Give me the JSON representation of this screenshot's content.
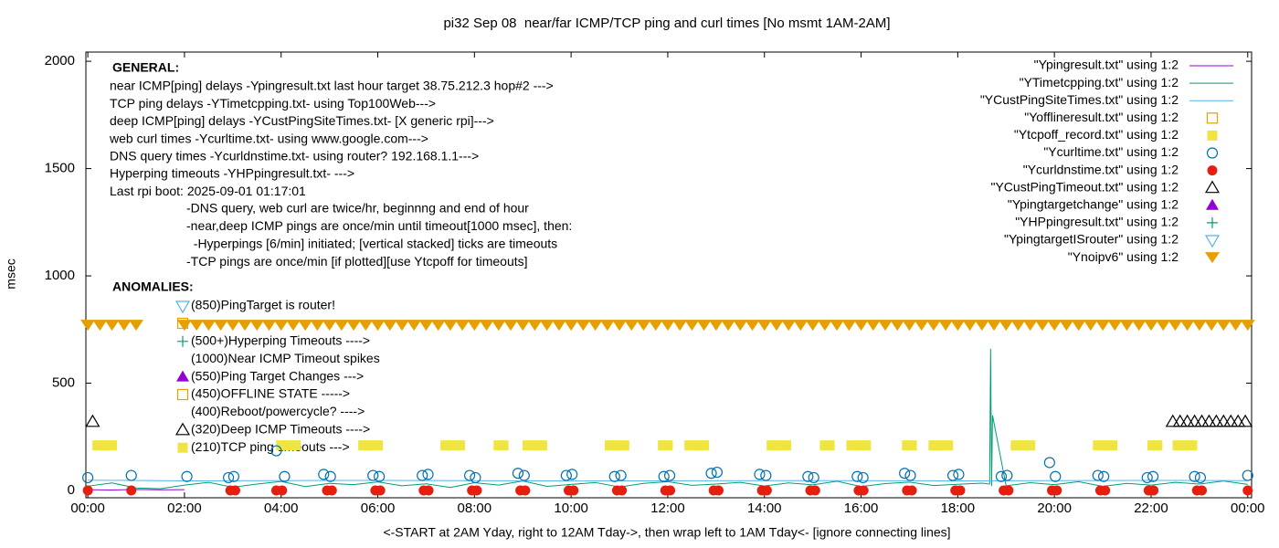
{
  "chart_data": {
    "type": "scatter",
    "title": "pi32 Sep 08  near/far ICMP/TCP ping and curl times [No msmt 1AM-2AM]",
    "x_label": "<-START at 2AM Yday, right to 12AM Tday->, then wrap left to 1AM Tday<- [ignore connecting lines]",
    "y_label": "msec",
    "xlim": [
      -0.04,
      24.08
    ],
    "ylim": [
      -34,
      2043
    ],
    "xticks": [
      {
        "value": 0,
        "label": "00:00"
      },
      {
        "value": 2,
        "label": "02:00"
      },
      {
        "value": 4,
        "label": "04:00"
      },
      {
        "value": 6,
        "label": "06:00"
      },
      {
        "value": 8,
        "label": "08:00"
      },
      {
        "value": 10,
        "label": "10:00"
      },
      {
        "value": 12,
        "label": "12:00"
      },
      {
        "value": 14,
        "label": "14:00"
      },
      {
        "value": 16,
        "label": "16:00"
      },
      {
        "value": 18,
        "label": "18:00"
      },
      {
        "value": 20,
        "label": "20:00"
      },
      {
        "value": 22,
        "label": "22:00"
      },
      {
        "value": 24,
        "label": "00:00"
      }
    ],
    "yticks": [
      0,
      500,
      1000,
      1500,
      2000
    ],
    "legend": "top-right",
    "annotations": {
      "general_title": "GENERAL:",
      "general": [
        "near ICMP[ping] delays -Ypingresult.txt last hour target 38.75.212.3 hop#2 --->",
        "TCP ping delays -YTimetcpping.txt- using Top100Web--->",
        "deep ICMP[ping] delays -YCustPingSiteTimes.txt- [X generic rpi]--->",
        "web curl times -Ycurltime.txt- using www.google.com--->",
        "DNS query times -Ycurldnstime.txt- using router? 192.168.1.1--->",
        "Hyperping timeouts -YHPpingresult.txt- --->",
        "Last rpi boot: 2025-09-01 01:17:01"
      ],
      "notes": [
        "-DNS query, web curl are twice/hr, beginnng and end of hour",
        "-near,deep ICMP pings are once/min until timeout[1000 msec], then:",
        "  -Hyperpings [6/min] initiated; [vertical stacked] ticks are timeouts",
        "-TCP pings are once/min [if plotted][use Ytcpoff for timeouts]"
      ],
      "anomalies_title": "ANOMALIES:",
      "anomalies": [
        "(850)PingTarget is router!",
        "(500+)Hyperping Timeouts ---->",
        "(1000)Near ICMP Timeout spikes",
        "(550)Ping Target Changes --->",
        "(450)OFFLINE STATE ----->",
        "(400)Reboot/powercycle? ---->",
        "(320)Deep ICMP Timeouts ---->",
        "(210)TCP ping timeouts --->"
      ]
    },
    "series": [
      {
        "name": "\"Ypingresult.txt\" using 1:2",
        "color": "#9400d3",
        "style": "line",
        "x": [
          0,
          0.5,
          1,
          1.5,
          2
        ],
        "values": [
          4,
          2,
          5,
          3,
          4
        ]
      },
      {
        "name": "\"YTimetcpping.txt\" using 1:2",
        "color": "#009e73",
        "style": "line",
        "x": [
          0,
          0.5,
          1,
          1.5,
          2,
          2.5,
          3,
          3.5,
          4,
          4.5,
          5,
          5.5,
          6,
          6.5,
          7,
          7.5,
          8,
          8.5,
          9,
          9.5,
          10,
          10.5,
          11,
          11.5,
          12,
          12.5,
          13,
          13.5,
          14,
          14.5,
          15,
          15.5,
          16,
          16.5,
          17,
          17.5,
          18,
          18.5,
          18.66,
          18.68,
          18.7,
          18.72,
          19,
          19.5,
          20,
          20.5,
          21,
          21.5,
          22,
          22.5,
          23,
          23.5,
          24
        ],
        "values": [
          20,
          35,
          12,
          8,
          25,
          38,
          15,
          30,
          42,
          18,
          33,
          27,
          40,
          22,
          31,
          14,
          36,
          25,
          44,
          19,
          28,
          37,
          16,
          33,
          41,
          24,
          30,
          38,
          21,
          35,
          26,
          43,
          18,
          32,
          39,
          23,
          29,
          34,
          30,
          660,
          20,
          350,
          22,
          36,
          27,
          41,
          19,
          33,
          25,
          38,
          30,
          44,
          28
        ]
      },
      {
        "name": "\"YCustPingSiteTimes.txt\" using 1:2",
        "color": "#56b4e9",
        "style": "line",
        "x": [
          0,
          2,
          6,
          10,
          14,
          18,
          22,
          24
        ],
        "values": [
          48,
          45,
          47,
          44,
          46,
          45,
          47,
          46
        ]
      },
      {
        "name": "\"Yofflineresult.txt\" using 1:2",
        "color": "#e69f00",
        "style": "points",
        "marker": "open-square",
        "x": [],
        "values": []
      },
      {
        "name": "\"Ytcpoff_record.txt\" using 1:2",
        "color": "#f0e442",
        "style": "points",
        "marker": "filled-square",
        "x": [
          0.2,
          0.3,
          0.4,
          0.5,
          4.0,
          4.1,
          4.2,
          4.3,
          5.7,
          5.8,
          5.9,
          6.0,
          7.4,
          7.5,
          7.6,
          7.7,
          8.5,
          8.6,
          9.1,
          9.2,
          9.3,
          9.4,
          10.8,
          10.9,
          11.0,
          11.1,
          11.9,
          12.0,
          12.45,
          12.55,
          12.65,
          12.75,
          14.15,
          14.25,
          14.35,
          14.45,
          15.25,
          15.35,
          15.8,
          15.9,
          16.0,
          16.1,
          16.95,
          17.05,
          17.5,
          17.6,
          17.7,
          17.8,
          19.2,
          19.3,
          19.4,
          19.5,
          20.9,
          21.0,
          21.1,
          21.2,
          22.03,
          22.13,
          22.55,
          22.65,
          22.75,
          22.85
        ],
        "values": [
          210,
          210,
          210,
          210,
          210,
          210,
          210,
          210,
          210,
          210,
          210,
          210,
          210,
          210,
          210,
          210,
          210,
          210,
          210,
          210,
          210,
          210,
          210,
          210,
          210,
          210,
          210,
          210,
          210,
          210,
          210,
          210,
          210,
          210,
          210,
          210,
          210,
          210,
          210,
          210,
          210,
          210,
          210,
          210,
          210,
          210,
          210,
          210,
          210,
          210,
          210,
          210,
          210,
          210,
          210,
          210,
          210,
          210,
          210,
          210,
          210,
          210
        ]
      },
      {
        "name": "\"Ycurltime.txt\" using 1:2",
        "color": "#0072b2",
        "style": "points",
        "marker": "open-circle",
        "x": [
          0.0,
          0.9,
          2.05,
          2.91,
          3.02,
          3.9,
          4.07,
          4.88,
          5.02,
          5.9,
          6.03,
          6.92,
          7.04,
          7.9,
          8.02,
          8.9,
          9.03,
          9.9,
          10.02,
          10.9,
          11.03,
          11.92,
          12.04,
          12.9,
          13.02,
          13.9,
          14.03,
          14.9,
          15.02,
          15.92,
          16.04,
          16.9,
          17.02,
          17.9,
          18.02,
          18.9,
          19.02,
          19.9,
          20.02,
          20.9,
          21.02,
          21.92,
          22.04,
          22.9,
          23.02,
          24.0
        ],
        "values": [
          60,
          70,
          65,
          60,
          65,
          185,
          65,
          75,
          65,
          70,
          65,
          70,
          75,
          70,
          60,
          80,
          70,
          70,
          75,
          65,
          70,
          65,
          70,
          80,
          85,
          75,
          70,
          65,
          60,
          65,
          60,
          80,
          70,
          70,
          75,
          65,
          70,
          130,
          65,
          70,
          65,
          60,
          65,
          65,
          60,
          70
        ]
      },
      {
        "name": "\"Ycurldnstime.txt\" using 1:2",
        "color": "#e51e10",
        "style": "points",
        "marker": "filled-circle",
        "x": [
          0.0,
          0.9,
          2.95,
          3.05,
          3.9,
          4.02,
          4.95,
          5.05,
          5.95,
          6.05,
          6.95,
          7.05,
          7.95,
          8.05,
          8.95,
          9.05,
          9.95,
          10.05,
          10.95,
          11.05,
          11.95,
          12.05,
          12.95,
          13.05,
          13.95,
          14.05,
          14.95,
          15.05,
          15.95,
          16.05,
          16.95,
          17.05,
          17.95,
          18.05,
          18.95,
          19.05,
          19.95,
          20.05,
          20.95,
          21.05,
          21.95,
          22.05,
          22.95,
          23.05,
          24.0
        ],
        "values": [
          0,
          0,
          0,
          0,
          0,
          0,
          0,
          0,
          0,
          0,
          0,
          0,
          0,
          0,
          0,
          0,
          0,
          0,
          0,
          0,
          0,
          0,
          0,
          0,
          0,
          0,
          0,
          0,
          0,
          0,
          0,
          0,
          0,
          0,
          0,
          0,
          0,
          0,
          0,
          0,
          0,
          0,
          0,
          0,
          0
        ]
      },
      {
        "name": "\"YCustPingTimeout.txt\" using 1:2",
        "color": "#000000",
        "style": "points",
        "marker": "open-triangle",
        "x": [
          0.1,
          22.45,
          22.6,
          22.75,
          22.9,
          23.05,
          23.2,
          23.35,
          23.5,
          23.65,
          23.8,
          23.95
        ],
        "values": [
          320,
          320,
          320,
          320,
          320,
          320,
          320,
          320,
          320,
          320,
          320,
          320
        ]
      },
      {
        "name": "\"Ypingtargetchange\" using 1:2",
        "color": "#9400d3",
        "style": "points",
        "marker": "filled-triangle",
        "x": [],
        "values": []
      },
      {
        "name": "\"YHPpingresult.txt\" using 1:2",
        "color": "#009e73",
        "style": "points",
        "marker": "plus",
        "x": [],
        "values": []
      },
      {
        "name": "\"YpingtargetISrouter\" using 1:2",
        "color": "#56b4e9",
        "style": "points",
        "marker": "open-down-triangle",
        "x": [],
        "values": []
      },
      {
        "name": "\"Ynoipv6\" using 1:2",
        "color": "#e69f00",
        "style": "points",
        "marker": "filled-down-triangle",
        "x": [
          0,
          0.25,
          0.5,
          0.75,
          1.0,
          2.0,
          2.25,
          2.5,
          2.75,
          3.0,
          3.25,
          3.5,
          3.75,
          4.0,
          4.25,
          4.5,
          4.75,
          5.0,
          5.25,
          5.5,
          5.75,
          6.0,
          6.25,
          6.5,
          6.75,
          7.0,
          7.25,
          7.5,
          7.75,
          8.0,
          8.25,
          8.5,
          8.75,
          9.0,
          9.25,
          9.5,
          9.75,
          10.0,
          10.25,
          10.5,
          10.75,
          11.0,
          11.25,
          11.5,
          11.75,
          12.0,
          12.25,
          12.5,
          12.75,
          13.0,
          13.25,
          13.5,
          13.75,
          14.0,
          14.25,
          14.5,
          14.75,
          15.0,
          15.25,
          15.5,
          15.75,
          16.0,
          16.25,
          16.5,
          16.75,
          17.0,
          17.25,
          17.5,
          17.75,
          18.0,
          18.25,
          18.5,
          18.75,
          19.0,
          19.25,
          19.5,
          19.75,
          20.0,
          20.25,
          20.5,
          20.75,
          21.0,
          21.25,
          21.5,
          21.75,
          22.0,
          22.25,
          22.5,
          22.75,
          23.0,
          23.25,
          23.5,
          23.75,
          24.0
        ],
        "values": [
          770,
          770,
          770,
          770,
          770,
          770,
          770,
          770,
          770,
          770,
          770,
          770,
          770,
          770,
          770,
          770,
          770,
          770,
          770,
          770,
          770,
          770,
          770,
          770,
          770,
          770,
          770,
          770,
          770,
          770,
          770,
          770,
          770,
          770,
          770,
          770,
          770,
          770,
          770,
          770,
          770,
          770,
          770,
          770,
          770,
          770,
          770,
          770,
          770,
          770,
          770,
          770,
          770,
          770,
          770,
          770,
          770,
          770,
          770,
          770,
          770,
          770,
          770,
          770,
          770,
          770,
          770,
          770,
          770,
          770,
          770,
          770,
          770,
          770,
          770,
          770,
          770,
          770,
          770,
          770,
          770,
          770,
          770,
          770,
          770,
          770,
          770,
          770,
          770,
          770,
          770,
          770,
          770,
          770
        ]
      }
    ]
  }
}
